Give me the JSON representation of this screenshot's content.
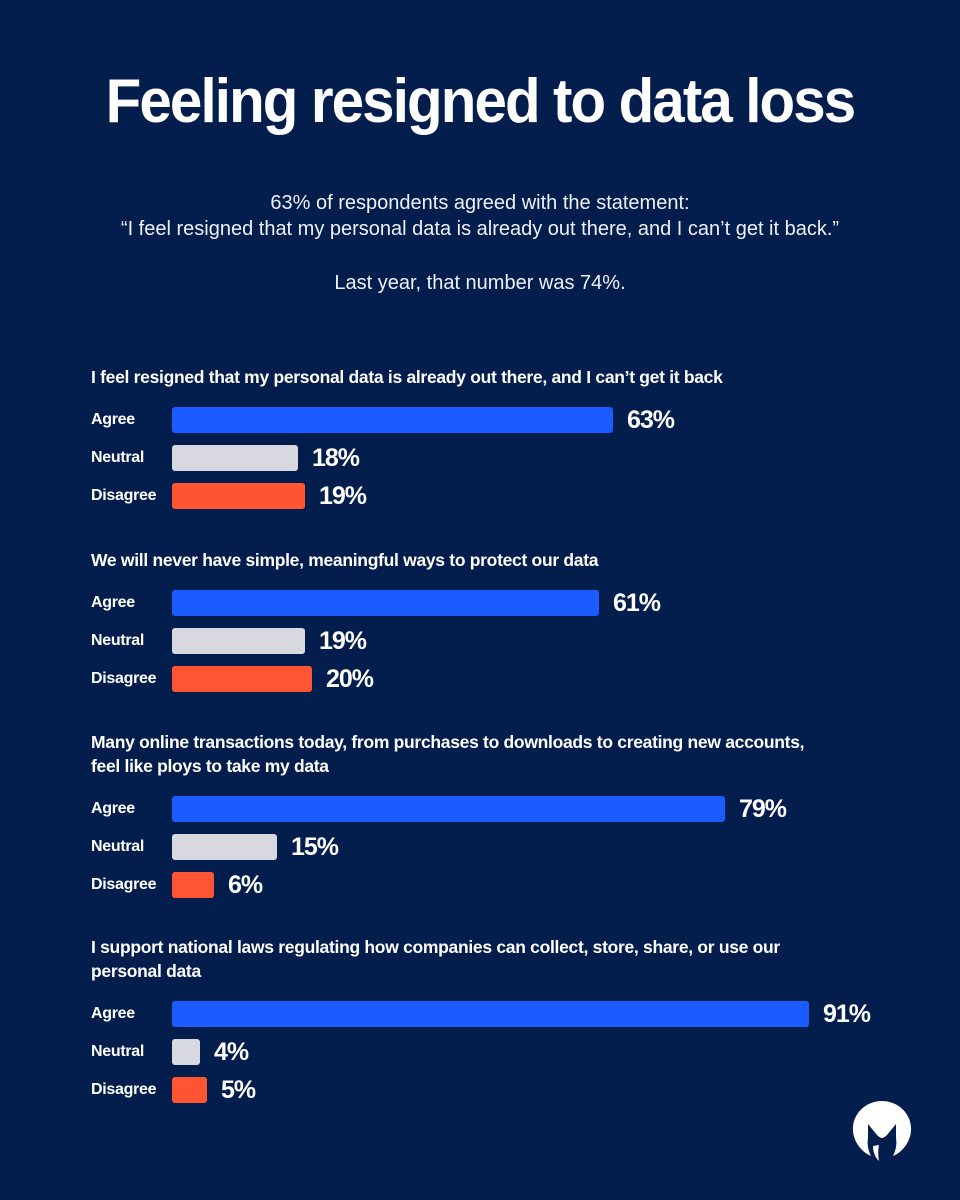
{
  "title": "Feeling resigned to data loss",
  "subtitle": {
    "line1": "63% of respondents agreed with the statement:",
    "line2": "“I feel resigned that my personal data is already out there, and I can’t get it back.”",
    "line3": "Last year, that number was 74%."
  },
  "colors": {
    "background": "#031d4d",
    "agree": "#1a5cff",
    "neutral": "#d8d8e0",
    "disagree": "#ff5533"
  },
  "logo": {
    "icon": "malwarebytes-logo-icon"
  },
  "chart_data": [
    {
      "type": "bar",
      "orientation": "horizontal",
      "title": "I feel resigned that my personal data is already out there, and I can’t get it back",
      "categories": [
        "Agree",
        "Neutral",
        "Disagree"
      ],
      "values": [
        63,
        18,
        19
      ],
      "labels": [
        "63%",
        "18%",
        "19%"
      ],
      "unit": "%"
    },
    {
      "type": "bar",
      "orientation": "horizontal",
      "title": "We will never have simple, meaningful ways to protect our data",
      "categories": [
        "Agree",
        "Neutral",
        "Disagree"
      ],
      "values": [
        61,
        19,
        20
      ],
      "labels": [
        "61%",
        "19%",
        "20%"
      ],
      "unit": "%"
    },
    {
      "type": "bar",
      "orientation": "horizontal",
      "title": "Many online transactions today, from purchases to downloads to creating new accounts, feel like ploys to take my data",
      "categories": [
        "Agree",
        "Neutral",
        "Disagree"
      ],
      "values": [
        79,
        15,
        6
      ],
      "labels": [
        "79%",
        "15%",
        "6%"
      ],
      "unit": "%"
    },
    {
      "type": "bar",
      "orientation": "horizontal",
      "title": "I support national laws regulating how companies can collect, store, share, or use our personal data",
      "categories": [
        "Agree",
        "Neutral",
        "Disagree"
      ],
      "values": [
        91,
        4,
        5
      ],
      "labels": [
        "91%",
        "4%",
        "5%"
      ],
      "unit": "%"
    }
  ]
}
